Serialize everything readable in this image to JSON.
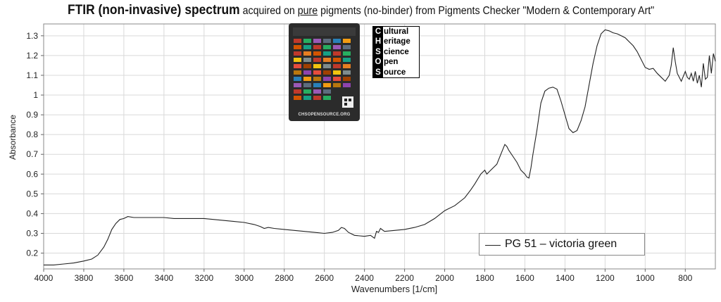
{
  "title": {
    "bold": "FTIR (non-invasive) spectrum",
    "pre": " acquired on ",
    "underlined": "pure",
    "post": " pigments (no-binder) from Pigments Checker \"Modern & Contemporary Art\""
  },
  "logo": {
    "letters": [
      "C",
      "H",
      "S",
      "O",
      "S"
    ],
    "words": [
      "ultural",
      "eritage",
      "cience",
      "pen",
      "ource"
    ],
    "card_caption": "CHSOPENSOURCE.ORG"
  },
  "chart_data": {
    "type": "line",
    "xlabel": "Wavenumbers [1/cm]",
    "ylabel": "Absorbance",
    "xlim": [
      4000,
      650
    ],
    "x_reversed": true,
    "ylim": [
      0.12,
      1.36
    ],
    "x_ticks": [
      4000,
      3800,
      3600,
      3400,
      3200,
      3000,
      2800,
      2600,
      2400,
      2200,
      2000,
      1800,
      1600,
      1400,
      1200,
      1000,
      800
    ],
    "y_ticks": [
      0.2,
      0.3,
      0.4,
      0.5,
      0.6,
      0.7,
      0.8,
      0.9,
      1,
      1.1,
      1.2,
      1.3
    ],
    "y_tick_labels": [
      "0.2",
      "0.3",
      "0.4",
      "0.5",
      "0.6",
      "0.7",
      "0.8",
      "0.9",
      "1",
      "1.1",
      "1.2",
      "1.3"
    ],
    "grid": true,
    "legend_position": "bottom-right",
    "series": [
      {
        "name": "PG 51 – victoria green",
        "color": "#222222",
        "x": [
          4000,
          3950,
          3900,
          3850,
          3800,
          3760,
          3730,
          3700,
          3680,
          3660,
          3640,
          3620,
          3600,
          3580,
          3550,
          3500,
          3450,
          3400,
          3350,
          3300,
          3250,
          3200,
          3150,
          3100,
          3050,
          3000,
          2950,
          2920,
          2900,
          2880,
          2850,
          2800,
          2750,
          2700,
          2650,
          2600,
          2560,
          2530,
          2515,
          2500,
          2480,
          2450,
          2400,
          2370,
          2350,
          2340,
          2330,
          2320,
          2300,
          2250,
          2200,
          2150,
          2100,
          2050,
          2000,
          1950,
          1900,
          1870,
          1850,
          1820,
          1800,
          1790,
          1780,
          1760,
          1740,
          1720,
          1700,
          1690,
          1680,
          1660,
          1640,
          1620,
          1600,
          1590,
          1580,
          1570,
          1560,
          1540,
          1520,
          1500,
          1480,
          1460,
          1440,
          1420,
          1400,
          1380,
          1360,
          1340,
          1320,
          1300,
          1280,
          1260,
          1240,
          1220,
          1200,
          1180,
          1160,
          1140,
          1120,
          1100,
          1080,
          1060,
          1040,
          1020,
          1000,
          980,
          960,
          940,
          920,
          900,
          880,
          870,
          860,
          850,
          840,
          820,
          800,
          790,
          780,
          770,
          760,
          750,
          740,
          730,
          720,
          710,
          700,
          690,
          680,
          670,
          660,
          650
        ],
        "y": [
          0.14,
          0.14,
          0.145,
          0.15,
          0.16,
          0.17,
          0.19,
          0.23,
          0.27,
          0.32,
          0.35,
          0.37,
          0.375,
          0.385,
          0.38,
          0.38,
          0.38,
          0.38,
          0.375,
          0.375,
          0.375,
          0.375,
          0.37,
          0.365,
          0.36,
          0.355,
          0.345,
          0.335,
          0.325,
          0.33,
          0.325,
          0.32,
          0.315,
          0.31,
          0.305,
          0.3,
          0.305,
          0.315,
          0.33,
          0.325,
          0.305,
          0.29,
          0.285,
          0.29,
          0.275,
          0.31,
          0.305,
          0.325,
          0.31,
          0.315,
          0.32,
          0.33,
          0.345,
          0.375,
          0.415,
          0.44,
          0.48,
          0.52,
          0.55,
          0.6,
          0.62,
          0.6,
          0.61,
          0.63,
          0.65,
          0.7,
          0.75,
          0.74,
          0.72,
          0.69,
          0.66,
          0.62,
          0.6,
          0.585,
          0.58,
          0.63,
          0.7,
          0.82,
          0.96,
          1.02,
          1.035,
          1.04,
          1.03,
          0.97,
          0.9,
          0.83,
          0.81,
          0.82,
          0.87,
          0.94,
          1.05,
          1.16,
          1.25,
          1.31,
          1.33,
          1.325,
          1.315,
          1.31,
          1.3,
          1.29,
          1.27,
          1.25,
          1.22,
          1.18,
          1.14,
          1.13,
          1.135,
          1.11,
          1.09,
          1.07,
          1.1,
          1.15,
          1.24,
          1.17,
          1.11,
          1.07,
          1.12,
          1.09,
          1.08,
          1.11,
          1.07,
          1.12,
          1.06,
          1.1,
          1.04,
          1.16,
          1.08,
          1.09,
          1.2,
          1.11,
          1.21,
          1.17
        ]
      }
    ]
  }
}
